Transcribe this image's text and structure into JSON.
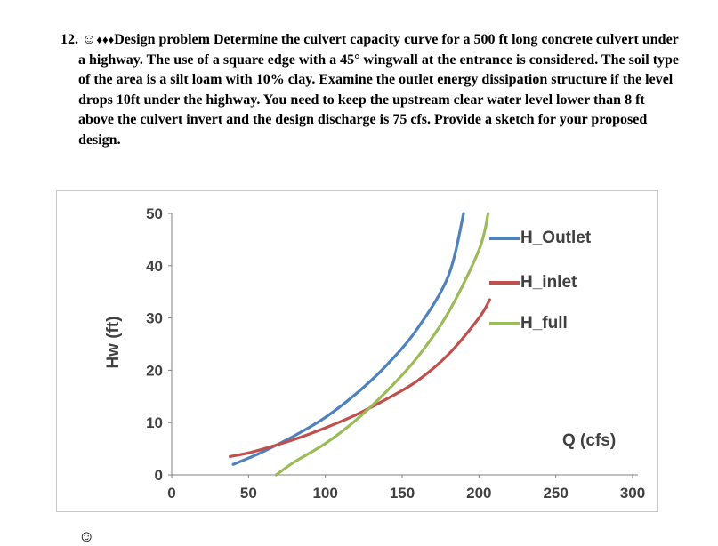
{
  "problem": {
    "number": "12.",
    "smiley_icon": "☺",
    "diamonds": "♦♦♦",
    "title": "Design problem",
    "body": " Determine the culvert capacity curve for a 500 ft long concrete culvert under a highway. The use of a square edge with a 45° wingwall at the entrance is considered. The soil type of the area is a silt loam with 10% clay. Examine the outlet energy dissipation structure if the level drops 10ft under the highway. You need to keep the upstream clear water level lower than 8 ft above the culvert invert and the design discharge is 75 cfs. Provide a sketch for your proposed design."
  },
  "next_item_partial_icon": "☺",
  "chart_data": {
    "type": "line",
    "title": "",
    "xlabel": "Q (cfs)",
    "ylabel": "Hw (ft)",
    "xlim": [
      0,
      300
    ],
    "ylim": [
      0,
      50
    ],
    "x_ticks": [
      0,
      50,
      100,
      150,
      200,
      250,
      300
    ],
    "y_ticks": [
      0,
      10,
      20,
      30,
      40,
      50
    ],
    "grid": false,
    "legend_position": "inside-right",
    "series": [
      {
        "name": "H_Outlet",
        "color": "#4F81BD",
        "points": [
          [
            40,
            2
          ],
          [
            50,
            3.2
          ],
          [
            60,
            4.5
          ],
          [
            80,
            7.5
          ],
          [
            100,
            11
          ],
          [
            120,
            15.5
          ],
          [
            140,
            21
          ],
          [
            160,
            28
          ],
          [
            180,
            38
          ],
          [
            190,
            50
          ]
        ]
      },
      {
        "name": "H_inlet",
        "color": "#C0504D",
        "points": [
          [
            38,
            3.5
          ],
          [
            50,
            4.2
          ],
          [
            60,
            5
          ],
          [
            80,
            6.8
          ],
          [
            100,
            9
          ],
          [
            120,
            11.5
          ],
          [
            140,
            14.5
          ],
          [
            160,
            18
          ],
          [
            180,
            23
          ],
          [
            200,
            30
          ],
          [
            207,
            33.5
          ]
        ]
      },
      {
        "name": "H_full",
        "color": "#9BBB59",
        "points": [
          [
            68,
            0
          ],
          [
            80,
            2.5
          ],
          [
            100,
            6
          ],
          [
            120,
            10.5
          ],
          [
            140,
            16
          ],
          [
            160,
            22.5
          ],
          [
            180,
            31
          ],
          [
            200,
            43
          ],
          [
            206,
            50
          ]
        ]
      }
    ]
  }
}
